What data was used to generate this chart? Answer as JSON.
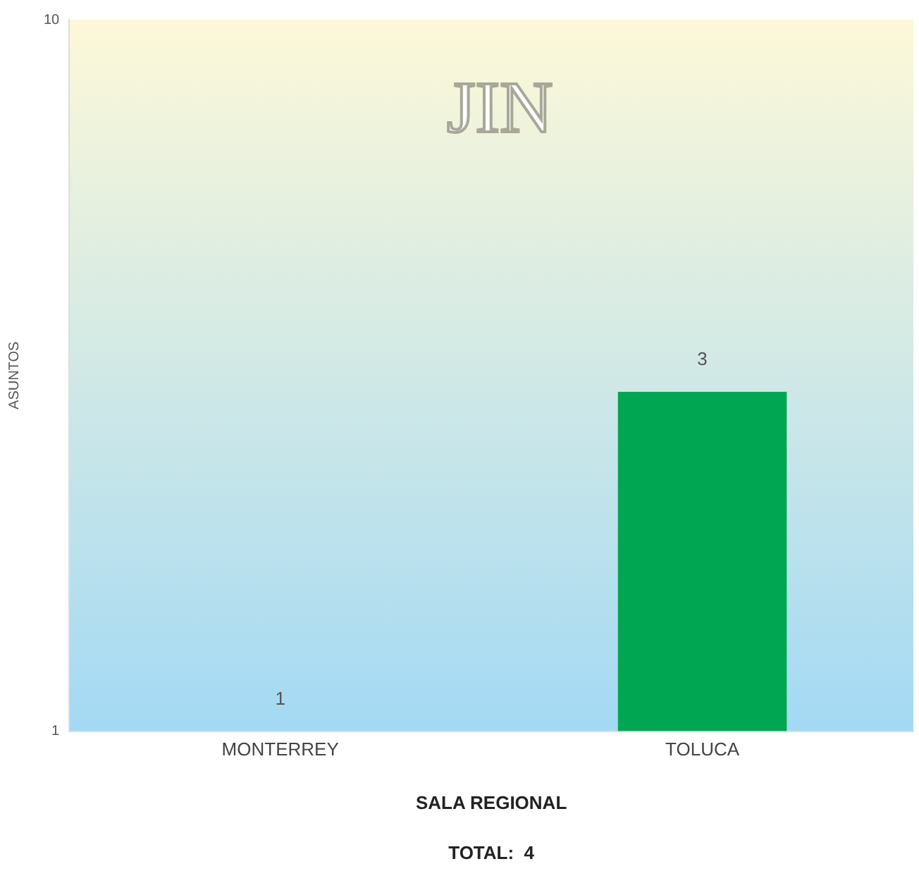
{
  "chart_data": {
    "type": "bar",
    "title": "JIN",
    "xlabel": "SALA REGIONAL",
    "ylabel": "ASUNTOS",
    "categories": [
      "MONTERREY",
      "TOLUCA"
    ],
    "values": [
      1,
      3
    ],
    "color": "#00a651",
    "log": true,
    "ylim": [
      1,
      10
    ],
    "yticks": [
      1,
      10
    ],
    "grid": false,
    "legend": false,
    "data_labels": true,
    "annotations": [
      "TOTAL:  4"
    ]
  }
}
